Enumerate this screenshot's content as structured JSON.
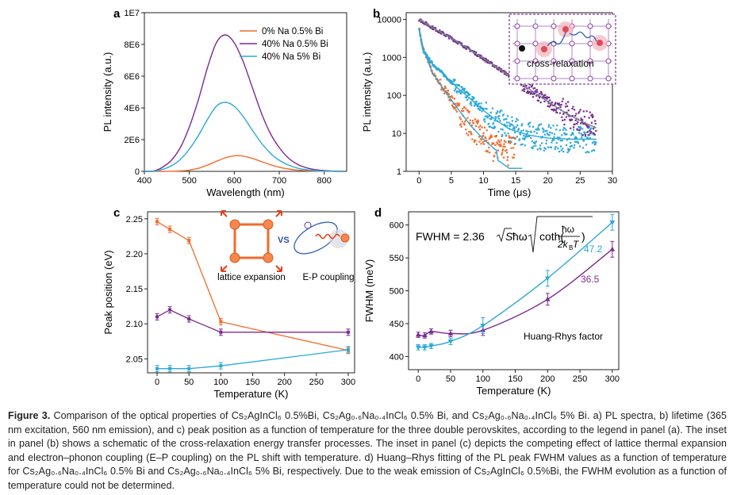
{
  "colors": {
    "orange": "#f26b2a",
    "purple": "#7b2c8f",
    "blue": "#2ba8d8",
    "fit_gray": "#6f8a8f",
    "inset_border": "#8a3fa0"
  },
  "caption": {
    "lead": "Figure 3.",
    "text": " Comparison of the optical properties of Cs₂AgInCl₆ 0.5%Bi, Cs₂Ag₀.₆Na₀.₄InCl₆ 0.5% Bi, and Cs₂Ag₀.₆Na₀.₄InCl₆ 5% Bi. a) PL spectra, b) lifetime (365 nm excitation, 560 nm emission), and c) peak position as a function of temperature for the three double perovskites, according to the legend in panel (a). The inset in panel (b) shows a schematic of the cross-relaxation energy transfer processes. The inset in panel (c) depicts the competing effect of lattice thermal expansion and electron–phonon coupling (E–P coupling) on the PL shift with temperature. d) Huang–Rhys fitting of the PL peak FWHM values as a function of temperature for Cs₂Ag₀.₆Na₀.₄InCl₆ 0.5% Bi and Cs₂Ag₀.₆Na₀.₄InCl₆ 5% Bi, respectively. Due to the weak emission of Cs₂AgInCl₆ 0.5%Bi, the FWHM evolution as a function of temperature could not be determined."
  },
  "chart_data": [
    {
      "panel": "a",
      "type": "line",
      "xlabel": "Wavelength (nm)",
      "ylabel": "PL intensity (a.u.)",
      "xlim": [
        400,
        850
      ],
      "ylim": [
        0,
        10000000
      ],
      "xticks": [
        "400",
        "500",
        "600",
        "700",
        "800"
      ],
      "yticks": [
        "0",
        "2E6",
        "4E6",
        "6E6",
        "8E6",
        "1E7"
      ],
      "legend_position": "top-right",
      "series": [
        {
          "name": "0% Na  0.5% Bi",
          "color": "orange",
          "x": [
            400,
            420,
            440,
            460,
            480,
            500,
            520,
            540,
            560,
            580,
            600,
            620,
            640,
            660,
            680,
            700,
            720,
            740,
            760,
            780,
            800,
            820,
            840
          ],
          "y": [
            0,
            0,
            1000,
            8000,
            30000,
            80000,
            190000,
            390000,
            630000,
            850000,
            980000,
            960000,
            820000,
            620000,
            420000,
            260000,
            150000,
            80000,
            40000,
            20000,
            8000,
            3000,
            1000
          ]
        },
        {
          "name": "40% Na  0.5% Bi",
          "color": "purple",
          "x": [
            400,
            420,
            440,
            460,
            480,
            500,
            520,
            540,
            560,
            580,
            600,
            620,
            640,
            660,
            680,
            700,
            720,
            740,
            760,
            780,
            800,
            820,
            840
          ],
          "y": [
            0,
            20000,
            250000,
            700000,
            1500000,
            2800000,
            4500000,
            6500000,
            8100000,
            8600000,
            8100000,
            6900000,
            5300000,
            3700000,
            2400000,
            1500000,
            850000,
            450000,
            230000,
            110000,
            50000,
            20000,
            5000
          ]
        },
        {
          "name": "40% Na 5% Bi",
          "color": "blue",
          "x": [
            400,
            420,
            440,
            460,
            480,
            500,
            520,
            540,
            560,
            580,
            600,
            620,
            640,
            660,
            680,
            700,
            720,
            740,
            760,
            780,
            800,
            820,
            840
          ],
          "y": [
            0,
            10000,
            120000,
            350000,
            750000,
            1400000,
            2250000,
            3250000,
            4100000,
            4350000,
            4100000,
            3450000,
            2600000,
            1800000,
            1150000,
            700000,
            400000,
            210000,
            100000,
            50000,
            20000,
            8000,
            2000
          ]
        }
      ]
    },
    {
      "panel": "b",
      "type": "scatter",
      "xlabel": "Time (μs)",
      "ylabel": "PL intensity (a.u.)",
      "xlim": [
        -2,
        30
      ],
      "ylim": [
        1,
        15000
      ],
      "yscale": "log",
      "xticks": [
        "0",
        "5",
        "10",
        "15",
        "20",
        "25",
        "30"
      ],
      "yticks": [
        "1",
        "10",
        "100",
        "1000",
        "10000"
      ],
      "inset_label": "cross-relaxation",
      "series": [
        {
          "name": "0% Na  0.5% Bi",
          "color": "orange",
          "decay": [
            [
              0,
              6000
            ],
            [
              0.5,
              2000
            ],
            [
              2,
              420
            ],
            [
              4,
              130
            ],
            [
              6,
              45
            ],
            [
              8,
              16
            ],
            [
              10,
              7
            ],
            [
              12,
              3.5
            ],
            [
              14,
              2
            ]
          ]
        },
        {
          "name": "40% Na  0.5% Bi",
          "color": "purple",
          "decay": [
            [
              0,
              10000
            ],
            [
              2,
              6200
            ],
            [
              5,
              3200
            ],
            [
              8,
              1550
            ],
            [
              11,
              720
            ],
            [
              14,
              330
            ],
            [
              17,
              150
            ],
            [
              20,
              68
            ],
            [
              23,
              32
            ],
            [
              26,
              18
            ],
            [
              27.5,
              14
            ]
          ]
        },
        {
          "name": "40% Na 5% Bi",
          "color": "blue",
          "decay": [
            [
              0,
              5500
            ],
            [
              0.6,
              1500
            ],
            [
              2,
              700
            ],
            [
              4,
              330
            ],
            [
              6,
              155
            ],
            [
              8,
              80
            ],
            [
              10,
              40
            ],
            [
              12,
              22
            ],
            [
              14,
              13
            ],
            [
              17,
              9
            ],
            [
              20,
              7.5
            ],
            [
              24,
              7
            ],
            [
              27.5,
              7
            ]
          ]
        }
      ]
    },
    {
      "panel": "c",
      "type": "line",
      "xlabel": "Temperature (K)",
      "ylabel": "Peak position (eV)",
      "xlim": [
        -15,
        310
      ],
      "ylim": [
        2.03,
        2.26
      ],
      "xticks": [
        "0",
        "50",
        "100",
        "150",
        "200",
        "250",
        "300"
      ],
      "yticks": [
        "2.05",
        "2.10",
        "2.15",
        "2.20",
        "2.25"
      ],
      "inset_labels": [
        "lattice expansion",
        "VS",
        "E-P coupling"
      ],
      "series": [
        {
          "name": "0% Na  0.5% Bi",
          "color": "orange",
          "x": [
            0,
            20,
            50,
            100,
            300
          ],
          "y": [
            2.246,
            2.235,
            2.219,
            2.103,
            2.062
          ]
        },
        {
          "name": "40% Na  0.5% Bi",
          "color": "purple",
          "x": [
            0,
            20,
            50,
            100,
            300
          ],
          "y": [
            2.11,
            2.12,
            2.107,
            2.088,
            2.088
          ]
        },
        {
          "name": "40% Na 5% Bi",
          "color": "blue",
          "x": [
            0,
            20,
            50,
            100,
            300
          ],
          "y": [
            2.036,
            2.036,
            2.036,
            2.04,
            2.063
          ]
        }
      ]
    },
    {
      "panel": "d",
      "type": "scatter",
      "xlabel": "Temperature (K)",
      "ylabel": "FWHM (meV)",
      "xlim": [
        -15,
        310
      ],
      "ylim": [
        380,
        620
      ],
      "xticks": [
        "0",
        "50",
        "100",
        "150",
        "200",
        "250",
        "300"
      ],
      "yticks": [
        "400",
        "450",
        "500",
        "550",
        "600"
      ],
      "formula_parts": [
        "FWHM = 2.36 ",
        "S",
        "ħω",
        "coth(",
        "ħω",
        "2k",
        "B",
        "T",
        ")"
      ],
      "annotation": "Huang-Rhys factor",
      "series": [
        {
          "name": "40% Na  0.5% Bi",
          "color": "purple",
          "label": "36.5",
          "x": [
            0,
            10,
            20,
            50,
            100,
            200,
            300
          ],
          "y": [
            433,
            432,
            438,
            435,
            440,
            487,
            563
          ],
          "err": [
            4,
            4,
            4,
            5,
            8,
            9,
            12
          ]
        },
        {
          "name": "40% Na 5% Bi",
          "color": "blue",
          "label": "47.2",
          "x": [
            0,
            10,
            20,
            50,
            100,
            200,
            300
          ],
          "y": [
            414,
            414,
            416,
            423,
            447,
            519,
            604
          ],
          "err": [
            4,
            4,
            4,
            5,
            12,
            12,
            12
          ]
        }
      ]
    }
  ]
}
